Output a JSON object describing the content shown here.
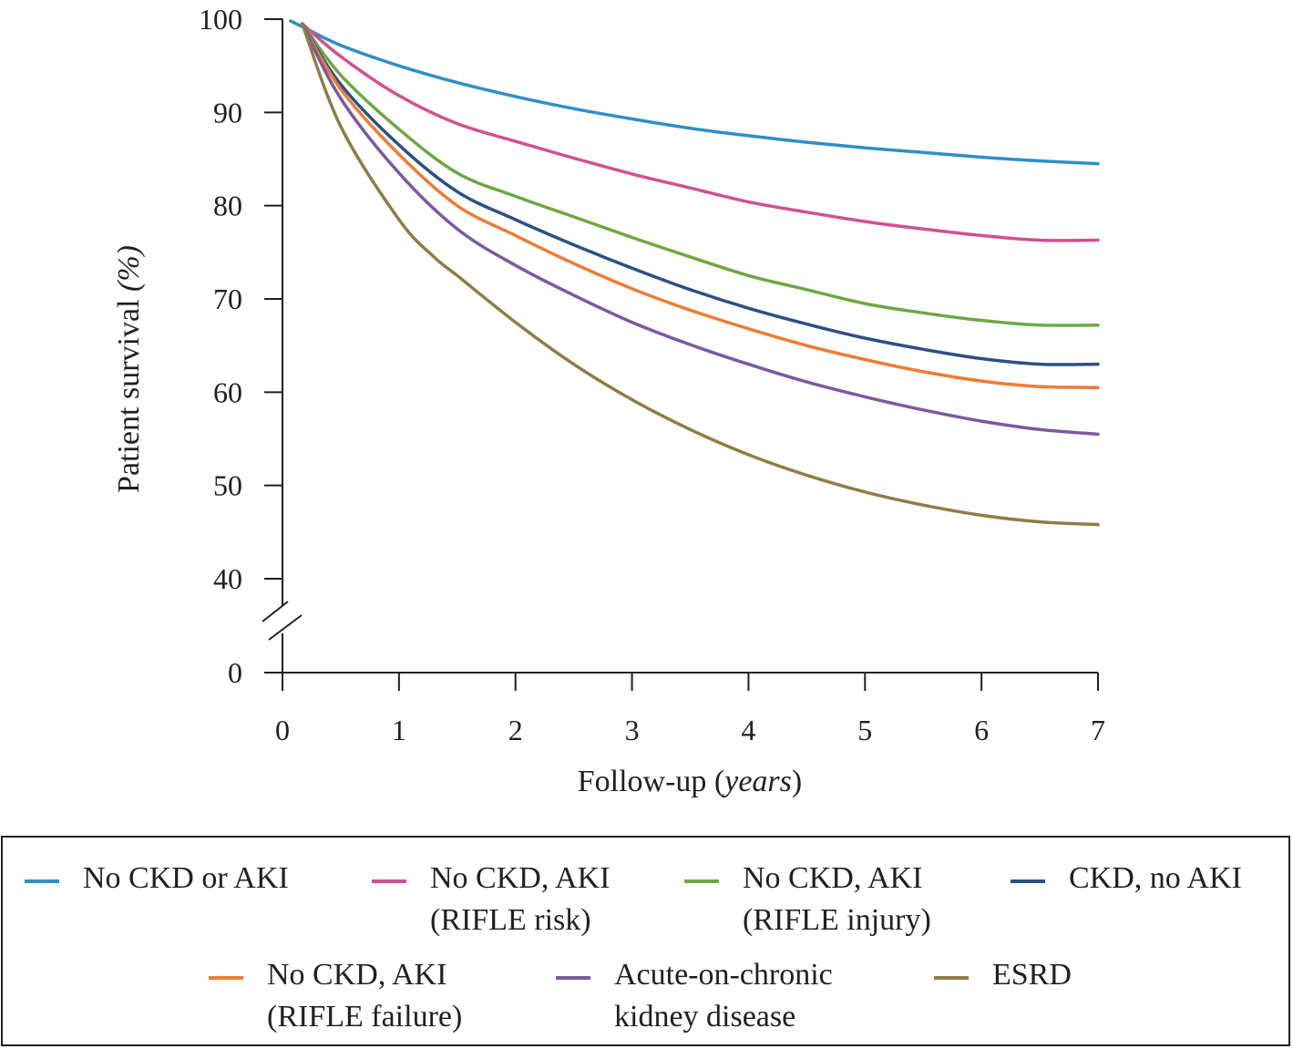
{
  "chart_data": {
    "type": "line",
    "title": "",
    "ylabel_main": "Patient survival ",
    "ylabel_unit": "(%)",
    "xlabel_main": "Follow-up (",
    "xlabel_unit": "years",
    "xlabel_end": ")",
    "xlim": [
      0,
      7
    ],
    "ylim": [
      40,
      100
    ],
    "y_axis_break": true,
    "y_ticks": [
      "100",
      "90",
      "80",
      "70",
      "60",
      "50",
      "40",
      "0"
    ],
    "x_ticks": [
      "0",
      "1",
      "2",
      "3",
      "4",
      "5",
      "6",
      "7"
    ],
    "grid": false,
    "legend_position": "bottom",
    "series": [
      {
        "name": "No CKD or AKI",
        "color": "#2f8fc6",
        "x": [
          0.07,
          0.2,
          0.5,
          1,
          1.5,
          2,
          2.5,
          3,
          3.5,
          4,
          4.5,
          5,
          5.5,
          6,
          6.5,
          7
        ],
        "y": [
          99.8,
          99.0,
          97.2,
          95.0,
          93.2,
          91.7,
          90.4,
          89.3,
          88.3,
          87.5,
          86.8,
          86.2,
          85.7,
          85.2,
          84.8,
          84.5
        ]
      },
      {
        "name": "No CKD, AKI (RIFLE risk)",
        "color": "#d2508f",
        "x": [
          0.17,
          0.5,
          1,
          1.5,
          2,
          2.5,
          3,
          3.5,
          4,
          4.5,
          5,
          5.5,
          6,
          6.5,
          7
        ],
        "y": [
          99.5,
          96.0,
          91.8,
          88.8,
          86.9,
          85.1,
          83.4,
          81.9,
          80.4,
          79.3,
          78.3,
          77.5,
          76.8,
          76.3,
          76.3
        ]
      },
      {
        "name": "No CKD, AKI (RIFLE injury)",
        "color": "#6ea843",
        "x": [
          0.17,
          0.5,
          1,
          1.5,
          2,
          2.5,
          3,
          3.5,
          4,
          4.5,
          5,
          5.5,
          6,
          6.5,
          7
        ],
        "y": [
          99.5,
          94.0,
          88.2,
          83.5,
          81.0,
          78.8,
          76.6,
          74.5,
          72.5,
          71.0,
          69.5,
          68.5,
          67.7,
          67.2,
          67.2
        ]
      },
      {
        "name": "CKD, no AKI",
        "color": "#2d5082",
        "x": [
          0.17,
          0.5,
          1,
          1.5,
          2,
          2.5,
          3,
          3.5,
          4,
          4.5,
          5,
          5.5,
          6,
          6.5,
          7
        ],
        "y": [
          99.5,
          93.0,
          86.5,
          81.5,
          78.5,
          75.8,
          73.3,
          71.0,
          69.0,
          67.3,
          65.8,
          64.6,
          63.6,
          63.0,
          63.0
        ]
      },
      {
        "name": "No CKD, AKI (RIFLE failure)",
        "color": "#ec7d34",
        "x": [
          0.17,
          0.5,
          1,
          1.5,
          2,
          2.5,
          3,
          3.5,
          4,
          4.5,
          5,
          5.5,
          6,
          6.5,
          7
        ],
        "y": [
          99.5,
          92.5,
          85.5,
          80.0,
          76.8,
          73.8,
          71.1,
          68.8,
          66.8,
          65.0,
          63.5,
          62.2,
          61.2,
          60.6,
          60.5
        ]
      },
      {
        "name": "Acute-on-chronic kidney disease",
        "color": "#7c5a9e",
        "x": [
          0.17,
          0.5,
          1,
          1.5,
          2,
          2.5,
          3,
          3.5,
          4,
          4.5,
          5,
          5.5,
          6,
          6.5,
          7
        ],
        "y": [
          99.5,
          91.5,
          83.5,
          77.5,
          73.6,
          70.4,
          67.5,
          65.1,
          63.0,
          61.1,
          59.5,
          58.1,
          56.9,
          56.0,
          55.5
        ]
      },
      {
        "name": "ESRD",
        "color": "#8f7d45",
        "x": [
          0.17,
          0.5,
          1,
          1.3,
          1.5,
          2,
          2.5,
          3,
          3.5,
          4,
          4.5,
          5,
          5.5,
          6,
          6.5,
          7
        ],
        "y": [
          99.5,
          88.5,
          78.5,
          74.5,
          72.5,
          67.5,
          63.0,
          59.2,
          56.0,
          53.3,
          51.1,
          49.3,
          47.9,
          46.8,
          46.1,
          45.8
        ]
      }
    ]
  },
  "legend": {
    "items": [
      {
        "lines": [
          "No CKD or AKI"
        ],
        "color": "#2f8fc6"
      },
      {
        "lines": [
          "No CKD, AKI",
          "(RIFLE risk)"
        ],
        "color": "#d2508f"
      },
      {
        "lines": [
          "No CKD, AKI",
          "(RIFLE injury)"
        ],
        "color": "#6ea843"
      },
      {
        "lines": [
          "CKD, no AKI"
        ],
        "color": "#2d5082"
      },
      {
        "lines": [
          "No CKD, AKI",
          "(RIFLE failure)"
        ],
        "color": "#ec7d34"
      },
      {
        "lines": [
          "Acute-on-chronic",
          "kidney disease"
        ],
        "color": "#7c5a9e"
      },
      {
        "lines": [
          "ESRD"
        ],
        "color": "#8f7d45"
      }
    ]
  }
}
